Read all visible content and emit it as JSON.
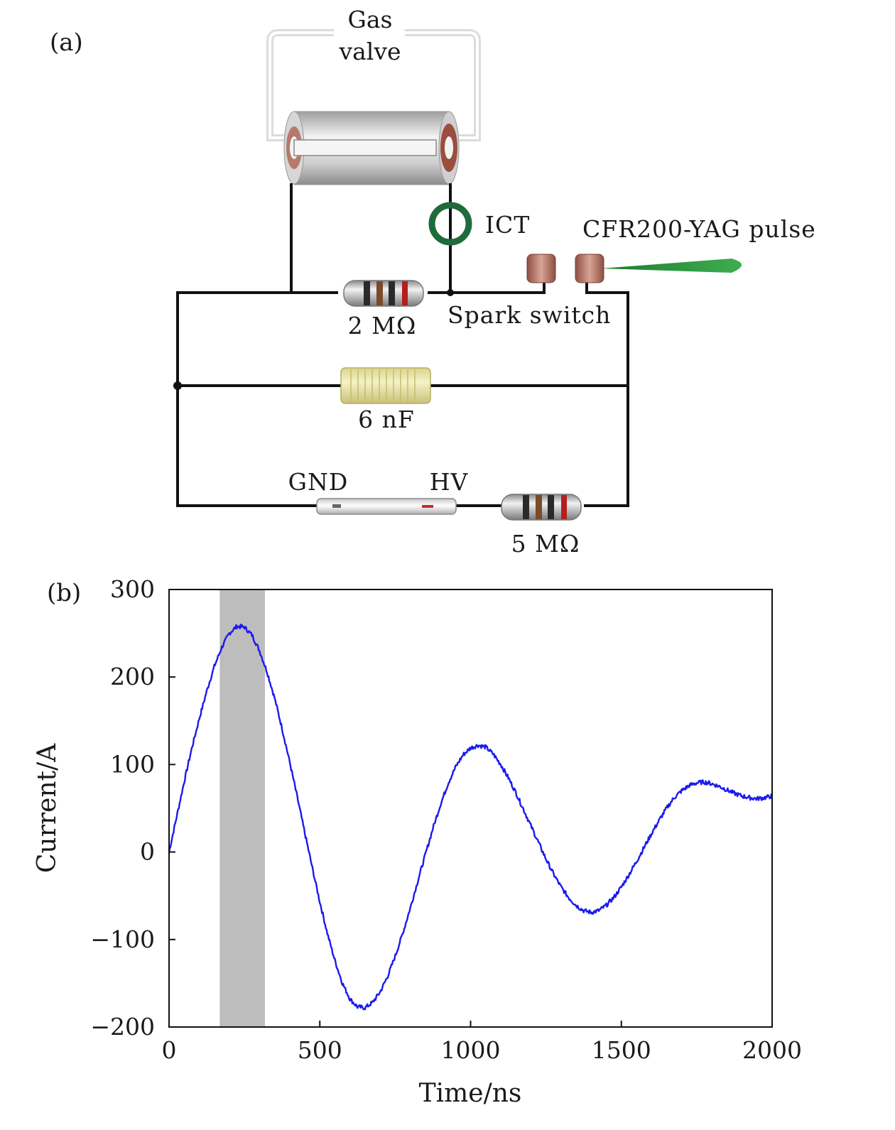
{
  "panel_a": {
    "label": "(a)",
    "gas_valve_line1": "Gas",
    "gas_valve_line2": "valve",
    "ict": "ICT",
    "laser": "CFR200-YAG pulse",
    "spark_switch": "Spark switch",
    "resistor1": "2 MΩ",
    "capacitor": "6 nF",
    "gnd": "GND",
    "hv": "HV",
    "resistor2": "5 MΩ"
  },
  "panel_b": {
    "label": "(b)"
  },
  "colors": {
    "curve": "#1a1aee",
    "shade": "#bdbdbd",
    "ict_ring": "#1f6b3c",
    "laser_beam": "#2e9a3e",
    "capacitor_body": "#e9e5ad",
    "electrode": "#b8786a"
  },
  "chart_data": {
    "type": "line",
    "xlabel": "Time/ns",
    "ylabel": "Current/A",
    "xlim": [
      0,
      2000
    ],
    "ylim": [
      -200,
      300
    ],
    "xticks": [
      0,
      500,
      1000,
      1500,
      2000
    ],
    "yticks": [
      300,
      200,
      100,
      0,
      -100,
      -200
    ],
    "ytick_labels": [
      "300",
      "200",
      "100",
      "0",
      "−100",
      "−200"
    ],
    "shaded_region": [
      168,
      318
    ],
    "grid": false,
    "series": [
      {
        "x": [
          0,
          25,
          50,
          75,
          100,
          125,
          150,
          175,
          200,
          225,
          250,
          275,
          300,
          325,
          350,
          375,
          400,
          425,
          450,
          475,
          500,
          525,
          550,
          575,
          600,
          625,
          650,
          675,
          700,
          725,
          750,
          775,
          800,
          825,
          850,
          875,
          900,
          925,
          950,
          975,
          1000,
          1025,
          1050,
          1075,
          1100,
          1125,
          1150,
          1175,
          1200,
          1225,
          1250,
          1275,
          1300,
          1325,
          1350,
          1375,
          1400,
          1425,
          1450,
          1475,
          1500,
          1525,
          1550,
          1575,
          1600,
          1625,
          1650,
          1675,
          1700,
          1725,
          1750,
          1775,
          1800,
          1825,
          1850,
          1875,
          1900,
          1925,
          1950,
          1975,
          2000
        ],
        "y": [
          0,
          40,
          80,
          118,
          152,
          184,
          212,
          234,
          250,
          258,
          257,
          248,
          230,
          206,
          176,
          141,
          103,
          63,
          22,
          -18,
          -57,
          -93,
          -124,
          -150,
          -168,
          -177,
          -178,
          -172,
          -160,
          -142,
          -119,
          -93,
          -64,
          -33,
          -3,
          27,
          54,
          78,
          97,
          111,
          119,
          122,
          120,
          112,
          100,
          85,
          68,
          49,
          30,
          11,
          -8,
          -25,
          -40,
          -52,
          -61,
          -67,
          -69,
          -67,
          -61,
          -52,
          -40,
          -26,
          -11,
          5,
          21,
          36,
          50,
          62,
          70,
          76,
          79,
          80,
          78,
          75,
          71,
          67,
          64,
          62,
          61,
          62,
          64
        ]
      }
    ]
  }
}
